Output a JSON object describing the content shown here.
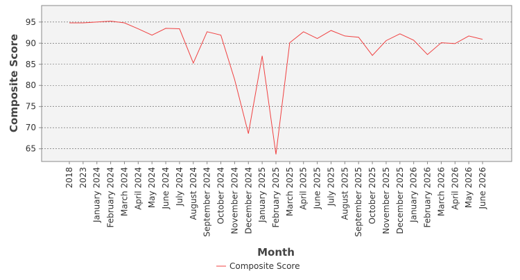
{
  "chart_data": {
    "type": "line",
    "x_label": "Month",
    "y_label": "Composite Score",
    "categories": [
      "2018",
      "2023",
      "January 2024",
      "February 2024",
      "March 2024",
      "April 2024",
      "May 2024",
      "June 2024",
      "July 2024",
      "August 2024",
      "September 2024",
      "October 2024",
      "November 2024",
      "December 2024",
      "January 2025",
      "February 2025",
      "March 2025",
      "April 2025",
      "June 2025",
      "July 2025",
      "August 2025",
      "September 2025",
      "October 2025",
      "November 2025",
      "December 2025",
      "January 2026",
      "February 2026",
      "March 2026",
      "April 2026",
      "May 2026",
      "June 2026"
    ],
    "series": [
      {
        "name": "Composite Score",
        "color": "#f04040",
        "values": [
          94.8,
          94.8,
          95.0,
          95.2,
          94.8,
          93.4,
          91.9,
          93.5,
          93.4,
          85.3,
          92.7,
          91.9,
          81.4,
          68.6,
          87.0,
          63.7,
          90.1,
          92.7,
          91.1,
          93.0,
          91.7,
          91.4,
          87.1,
          90.6,
          92.2,
          90.7,
          87.3,
          90.1,
          89.9,
          91.7,
          90.9
        ]
      }
    ],
    "ylim": [
      62,
      98.9
    ],
    "yticks": [
      65,
      70,
      75,
      80,
      85,
      90,
      95
    ],
    "grid": true,
    "legend": "bottom"
  }
}
